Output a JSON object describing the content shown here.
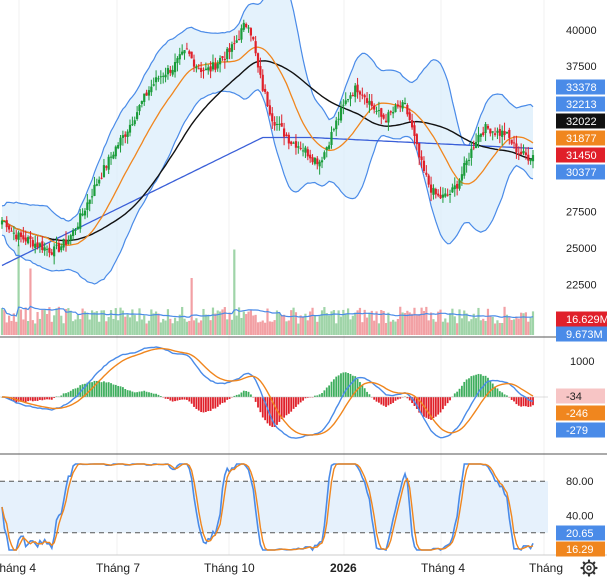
{
  "chart_data": [
    {
      "type": "candlestick",
      "panel": "price",
      "y_ticks": [
        40000,
        37500,
        27500,
        25000,
        22500
      ],
      "ylim": [
        20600,
        41500
      ],
      "price_tags": [
        {
          "label": "33378",
          "color": "#4a8be8",
          "text_color": "#ffffff"
        },
        {
          "label": "32213",
          "color": "#4a8be8",
          "text_color": "#ffffff"
        },
        {
          "label": "32022",
          "color": "#111111",
          "text_color": "#ffffff"
        },
        {
          "label": "31877",
          "color": "#f0861e",
          "text_color": "#ffffff"
        },
        {
          "label": "31450",
          "color": "#e0202a",
          "text_color": "#ffffff"
        },
        {
          "label": "30377",
          "color": "#4a8be8",
          "text_color": "#ffffff"
        }
      ],
      "volume_tags": [
        {
          "label": "16.629M",
          "color": "#e0202a",
          "text_color": "#ffffff"
        },
        {
          "label": "9.673M",
          "color": "#4a8be8",
          "text_color": "#ffffff"
        }
      ],
      "close_series": [
        26900,
        26700,
        26200,
        25900,
        25700,
        25600,
        25500,
        25300,
        25200,
        25000,
        24900,
        24800,
        25000,
        25300,
        25600,
        26100,
        26700,
        27400,
        28100,
        28800,
        29500,
        30100,
        30700,
        31300,
        31900,
        32400,
        32900,
        33500,
        34100,
        34700,
        35300,
        35900,
        36300,
        36700,
        37000,
        37200,
        37400,
        37800,
        38200,
        38500,
        38000,
        37600,
        37300,
        37200,
        37300,
        37600,
        38000,
        38200,
        38500,
        39000,
        39600,
        40200,
        40500,
        39200,
        37300,
        36000,
        35000,
        34000,
        33500,
        33100,
        32700,
        32300,
        32200,
        32000,
        31700,
        31400,
        31100,
        31000,
        31600,
        32400,
        33200,
        34000,
        34700,
        35400,
        35800,
        36000,
        35700,
        35300,
        34800,
        34400,
        34000,
        33900,
        34200,
        34500,
        34700,
        34700,
        33800,
        32500,
        31200,
        30200,
        29400,
        28800,
        28500,
        28500,
        28600,
        28900,
        29400,
        30100,
        30900,
        31700,
        32500,
        33000,
        33200,
        33200,
        33000,
        32900,
        32900,
        32500,
        32000,
        31600,
        31400,
        31300,
        31400
      ],
      "series": [
        {
          "name": "MA20",
          "color": "#f0861e"
        },
        {
          "name": "MA50",
          "color": "#111111"
        },
        {
          "name": "MA200",
          "color": "#3a5fd8"
        },
        {
          "name": "Bollinger",
          "color": "#4a8be8"
        }
      ]
    },
    {
      "type": "histogram",
      "panel": "macd",
      "y_ticks": [
        1000
      ],
      "tags": [
        {
          "label": "-34",
          "color": "#f7c5c5",
          "text_color": "#222222"
        },
        {
          "label": "-246",
          "color": "#f0861e",
          "text_color": "#ffffff"
        },
        {
          "label": "-279",
          "color": "#4a8be8",
          "text_color": "#ffffff"
        }
      ]
    },
    {
      "type": "line",
      "panel": "stochastic",
      "y_ticks": [
        80,
        40
      ],
      "ylim": [
        0,
        100
      ],
      "bands": [
        20,
        80
      ],
      "tags": [
        {
          "label": "20.65",
          "color": "#4a8be8",
          "text_color": "#ffffff"
        },
        {
          "label": "16.29",
          "color": "#f0861e",
          "text_color": "#ffffff"
        }
      ]
    }
  ],
  "x_axis": {
    "labels": [
      {
        "text": "Tháng 4",
        "bold": false
      },
      {
        "text": "Tháng 7",
        "bold": false
      },
      {
        "text": "Tháng 10",
        "bold": false
      },
      {
        "text": "2026",
        "bold": true
      },
      {
        "text": "Tháng 4",
        "bold": false
      },
      {
        "text": "Tháng",
        "bold": false
      }
    ]
  },
  "icons": {
    "settings": "gear-icon"
  }
}
